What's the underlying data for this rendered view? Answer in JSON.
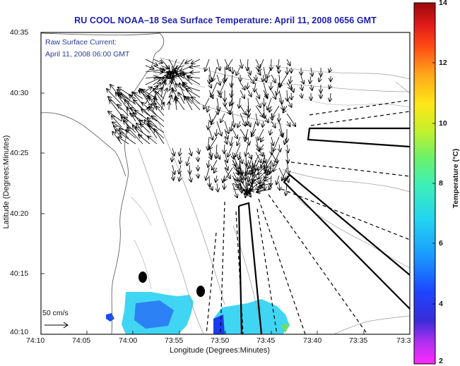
{
  "title": "RU COOL  NOAA–18  Sea Surface Temperature:  April 11, 2008 0656 GMT",
  "legend": {
    "line1": "Raw Surface Current:",
    "line2": "April 11, 2008 06:00 GMT",
    "scale_label": "50 cm/s"
  },
  "axes": {
    "xlabel": "Longitude (Degrees:Minutes)",
    "ylabel": "Latitude (Degrees:Minutes)",
    "x_ticks": [
      "74:10",
      "74:05",
      "74:00",
      "73:55",
      "73:50",
      "73:45",
      "73:40",
      "73:35",
      "73:3"
    ],
    "y_ticks": [
      "40:35",
      "40:30",
      "40:25",
      "40:20",
      "40:15",
      "40:10"
    ]
  },
  "colorbar": {
    "label": "Temperature (°C)",
    "min": 2,
    "max": 14,
    "ticks": [
      "14",
      "12",
      "10",
      "8",
      "6",
      "4",
      "2"
    ]
  },
  "colors": {
    "title": "#1c1cb4",
    "legend_text": "#2a3a9a",
    "vectors": "#000000",
    "bathymetry": "#888888",
    "sst_main": "#36d4f2",
    "sst_blue": "#1a3cf0"
  }
}
